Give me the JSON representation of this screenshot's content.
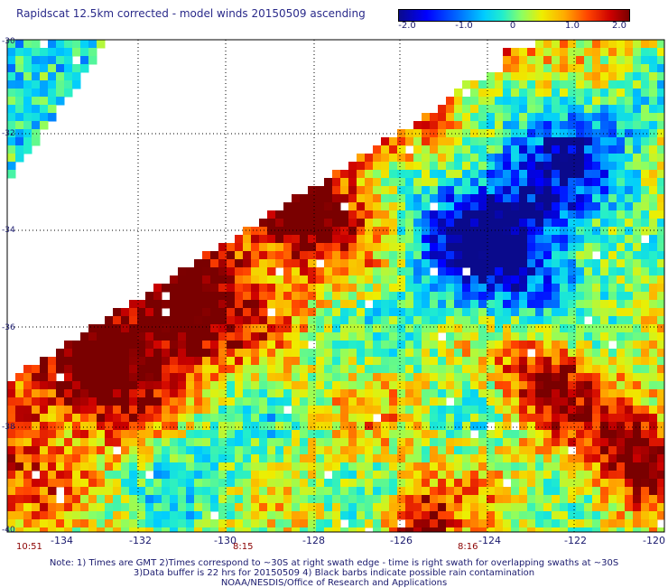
{
  "title": "Rapidscat 12.5km corrected - model winds 20150509 ascending",
  "colorbar": {
    "ticks": [
      "-2.0",
      "-1.0",
      "0",
      "1.0",
      "2.0"
    ],
    "min": -2.0,
    "max": 2.0,
    "palette": [
      "#0a0a8c",
      "#0000ff",
      "#0066ff",
      "#00ccff",
      "#22eecc",
      "#88ff66",
      "#eeee00",
      "#ffaa00",
      "#ff4400",
      "#cc0000",
      "#7a0000"
    ]
  },
  "map": {
    "lon_range": [
      -135.0,
      -120.0
    ],
    "lat_range": [
      -40.0,
      -30.0
    ],
    "lat_labels": [
      "-30",
      "-32",
      "-34",
      "-36",
      "-38",
      "-40"
    ],
    "lon_labels": [
      "-134",
      "-132",
      "-130",
      "-128",
      "-126",
      "-124",
      "-122",
      "-120"
    ],
    "grid": true,
    "grid_style": "dotted"
  },
  "times": [
    "10:51",
    "8:15",
    "8:16"
  ],
  "notes": {
    "line1": "Note: 1) Times are GMT 2)Times correspond to ~30S at right swath edge - time is right swath for overlapping swaths at ~30S",
    "line2": "3)Data buffer is 22 hrs for 20150509 4) Black barbs indicate possible rain contamination",
    "line3": "NOAA/NESDIS/Office of Research and Applications"
  }
}
